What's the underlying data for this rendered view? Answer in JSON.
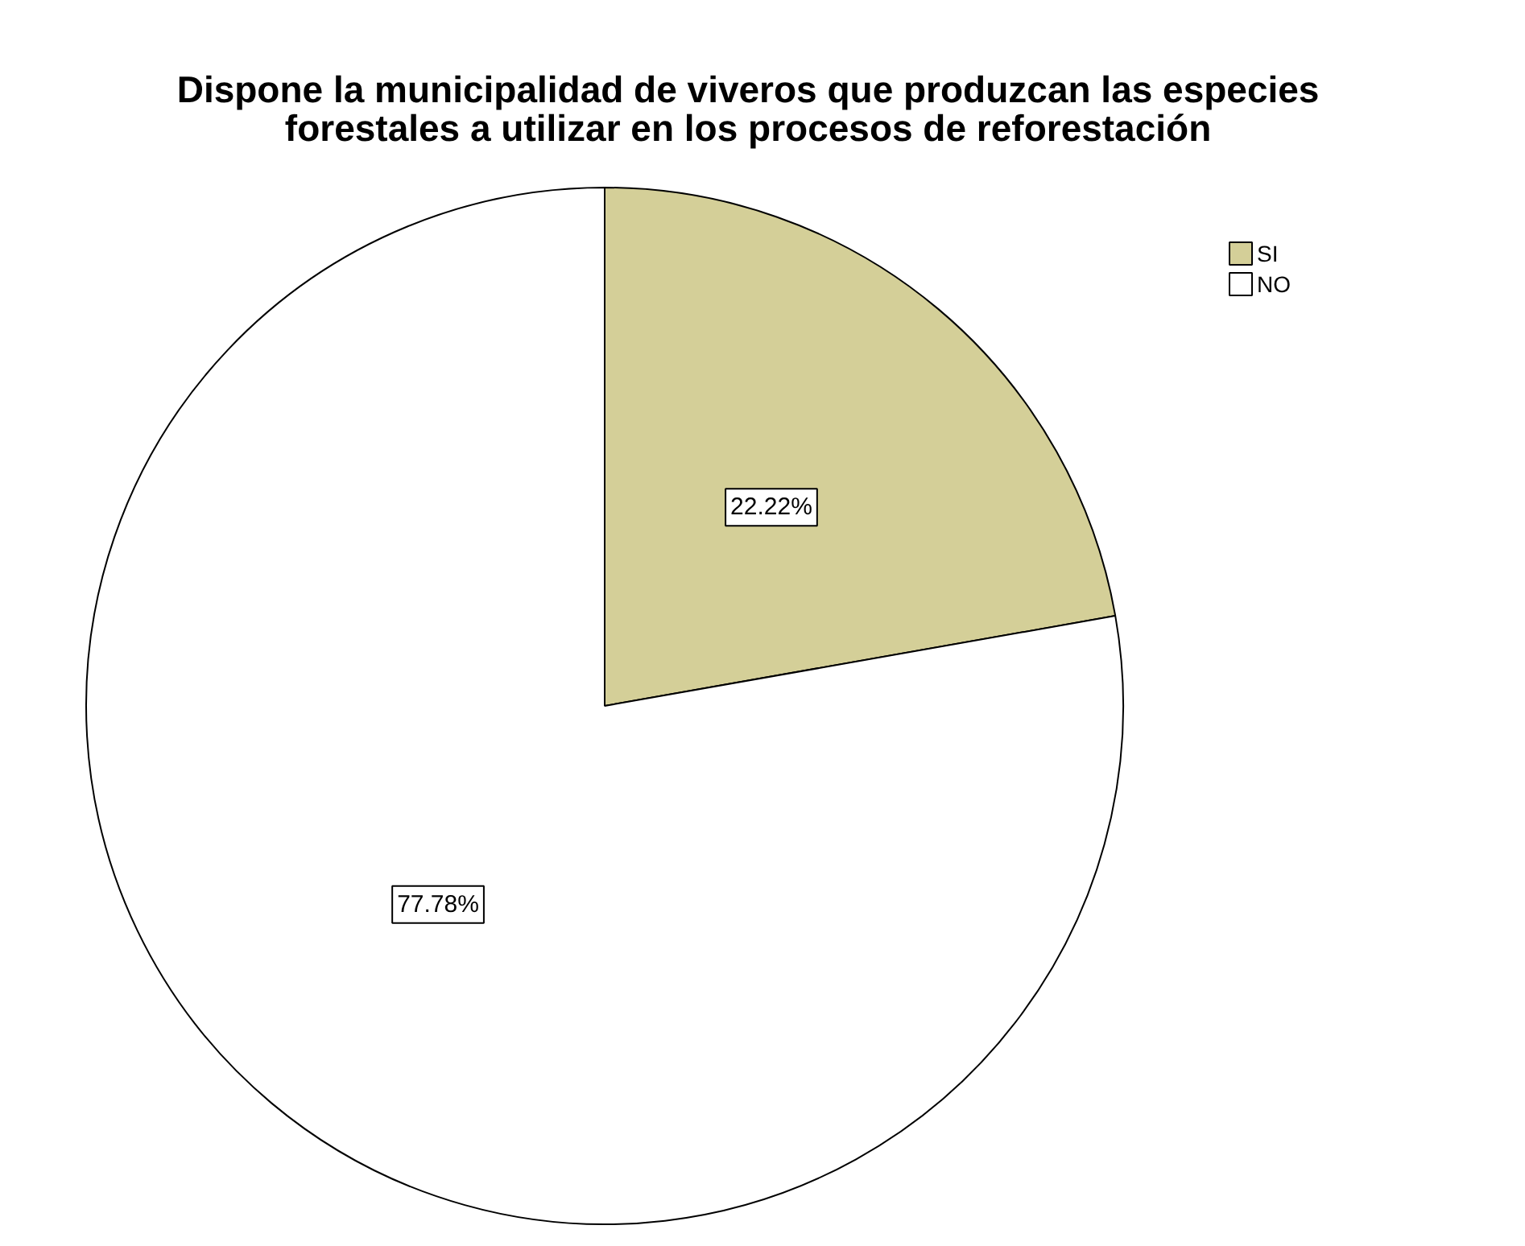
{
  "chart_data": {
    "type": "pie",
    "title": "Dispone la municipalidad de viveros que produzcan las especies forestales a utilizar en los procesos de reforestación",
    "categories": [
      "SI",
      "NO"
    ],
    "values": [
      22.22,
      77.78
    ],
    "colors": [
      "#d4cf98",
      "#ffffff"
    ],
    "value_labels": [
      "22.22%",
      "77.78%"
    ],
    "legend": "top right"
  }
}
